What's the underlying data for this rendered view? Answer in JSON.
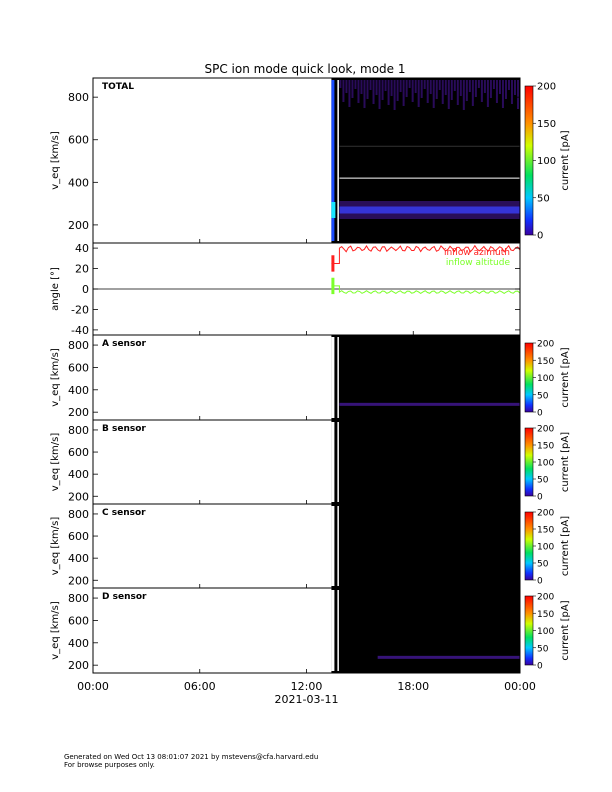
{
  "title": "SPC ion mode quick look, mode 1",
  "footer": [
    "Generated on Wed Oct 13 08:01:07 2021 by mstevens@cfa.harvard.edu",
    "For browse purposes only."
  ],
  "colors": {
    "background": "#000000",
    "azimuth": "#ff2020",
    "altitude": "#7cff2a",
    "plasma": "#5a20c8",
    "plasma_dim": "#3a1080",
    "core": "#1a4cff",
    "core_bright": "#19e6ff"
  },
  "colorbar_label": "current [pA]",
  "chart_data": [
    {
      "type": "heatmap",
      "label": "TOTAL",
      "ylabel": "v_eq [km/s]",
      "ylabel_sub": "eq",
      "ylim": [
        115,
        890
      ],
      "yticks": [
        200,
        400,
        600,
        800
      ],
      "x_hours": [
        0,
        24
      ],
      "data_start_hour": 13.4,
      "beam_start_hour": 13.85,
      "beam_velocity": 270,
      "colorbar": {
        "ticks": [
          0,
          50,
          100,
          150,
          200
        ],
        "range": [
          0,
          200
        ]
      }
    },
    {
      "type": "line",
      "ylabel": "angle [°]",
      "ylim": [
        -45,
        45
      ],
      "yticks": [
        -40,
        -20,
        0,
        20,
        40
      ],
      "series": [
        {
          "name": "inflow azimuth",
          "value_after": 40,
          "value_before": 25
        },
        {
          "name": "inflow altitude",
          "value_after": -3,
          "value_before": 3
        }
      ]
    },
    {
      "type": "heatmap",
      "label": "A sensor",
      "ylabel": "v_eq [km/s]",
      "ylim": [
        130,
        890
      ],
      "yticks": [
        200,
        400,
        600,
        800
      ],
      "beam_velocity": 270,
      "colorbar": {
        "ticks": [
          0,
          50,
          100,
          150,
          200
        ],
        "range": [
          0,
          200
        ]
      }
    },
    {
      "type": "heatmap",
      "label": "B sensor",
      "ylabel": "v_eq [km/s]",
      "ylim": [
        130,
        890
      ],
      "yticks": [
        200,
        400,
        600,
        800
      ],
      "beam_velocity": 0,
      "colorbar": {
        "ticks": [
          0,
          50,
          100,
          150,
          200
        ],
        "range": [
          0,
          200
        ]
      }
    },
    {
      "type": "heatmap",
      "label": "C sensor",
      "ylabel": "v_eq [km/s]",
      "ylim": [
        130,
        890
      ],
      "yticks": [
        200,
        400,
        600,
        800
      ],
      "beam_velocity": 0,
      "colorbar": {
        "ticks": [
          0,
          50,
          100,
          150,
          200
        ],
        "range": [
          0,
          200
        ]
      }
    },
    {
      "type": "heatmap",
      "label": "D sensor",
      "ylabel": "v_eq [km/s]",
      "ylim": [
        130,
        890
      ],
      "yticks": [
        200,
        400,
        600,
        800
      ],
      "beam_velocity": 270,
      "beam_start_hour": 16.0,
      "colorbar": {
        "ticks": [
          0,
          50,
          100,
          150,
          200
        ],
        "range": [
          0,
          200
        ]
      }
    }
  ],
  "xaxis": {
    "ticks": [
      0,
      6,
      12,
      18,
      24
    ],
    "tick_labels": [
      "00:00",
      "06:00",
      "12:00",
      "18:00",
      "00:00"
    ],
    "date_label": "2021-03-11"
  }
}
